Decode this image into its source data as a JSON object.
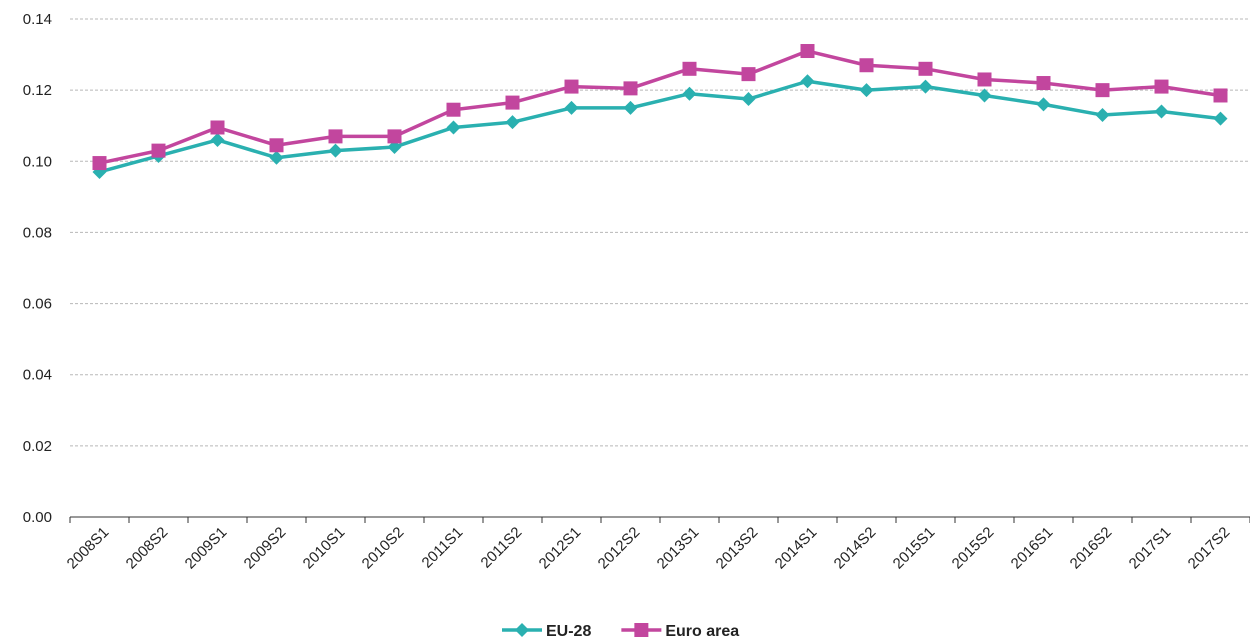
{
  "chart_data": {
    "type": "line",
    "categories": [
      "2008S1",
      "2008S2",
      "2009S1",
      "2009S2",
      "2010S1",
      "2010S2",
      "2011S1",
      "2011S2",
      "2012S1",
      "2012S2",
      "2013S1",
      "2013S2",
      "2014S1",
      "2014S2",
      "2015S1",
      "2015S2",
      "2016S1",
      "2016S2",
      "2017S1",
      "2017S2"
    ],
    "series": [
      {
        "name": "EU-28",
        "color": "#2ab0b0",
        "marker": "diamond",
        "values": [
          0.097,
          0.1015,
          0.106,
          0.101,
          0.103,
          0.104,
          0.1095,
          0.111,
          0.115,
          0.115,
          0.119,
          0.1175,
          0.1225,
          0.12,
          0.121,
          0.1185,
          0.116,
          0.113,
          0.114,
          0.112
        ]
      },
      {
        "name": "Euro area",
        "color": "#c2469e",
        "marker": "square",
        "values": [
          0.0995,
          0.103,
          0.1095,
          0.1045,
          0.107,
          0.107,
          0.1145,
          0.1165,
          0.121,
          0.1205,
          0.126,
          0.1245,
          0.131,
          0.127,
          0.126,
          0.123,
          0.122,
          0.12,
          0.121,
          0.1185
        ]
      }
    ],
    "y_ticks": [
      "0.00",
      "0.02",
      "0.04",
      "0.06",
      "0.08",
      "0.10",
      "0.12",
      "0.14"
    ],
    "ylim": [
      0,
      0.14
    ],
    "grid": true,
    "legend_position": "bottom"
  }
}
